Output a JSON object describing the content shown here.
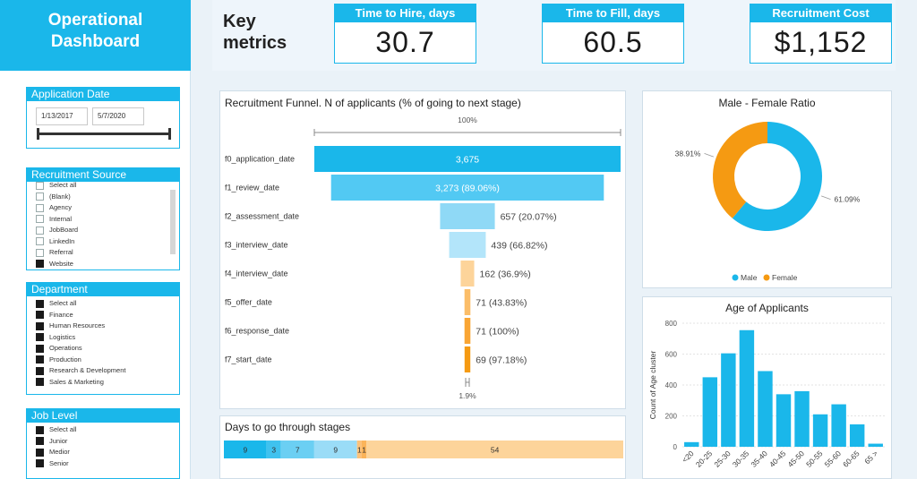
{
  "dashboard": {
    "title": "Operational\nDashboard"
  },
  "application_date": {
    "title": "Application Date",
    "start": "1/13/2017",
    "end": "5/7/2020"
  },
  "recruitment_source": {
    "title": "Recruitment Source",
    "items": [
      {
        "label": "Select all",
        "checked": false
      },
      {
        "label": "(Blank)",
        "checked": false
      },
      {
        "label": "Agency",
        "checked": false
      },
      {
        "label": "Internal",
        "checked": false
      },
      {
        "label": "JobBoard",
        "checked": false
      },
      {
        "label": "LinkedIn",
        "checked": false
      },
      {
        "label": "Referral",
        "checked": false
      },
      {
        "label": "Website",
        "checked": true
      }
    ]
  },
  "department": {
    "title": "Department",
    "items": [
      {
        "label": "Select all",
        "checked": true
      },
      {
        "label": "Finance",
        "checked": true
      },
      {
        "label": "Human Resources",
        "checked": true
      },
      {
        "label": "Logistics",
        "checked": true
      },
      {
        "label": "Operations",
        "checked": true
      },
      {
        "label": "Production",
        "checked": true
      },
      {
        "label": "Research & Development",
        "checked": true
      },
      {
        "label": "Sales & Marketing",
        "checked": true
      }
    ]
  },
  "job_level": {
    "title": "Job Level",
    "items": [
      {
        "label": "Select all",
        "checked": true
      },
      {
        "label": "Junior",
        "checked": true
      },
      {
        "label": "Medior",
        "checked": true
      },
      {
        "label": "Senior",
        "checked": true
      }
    ]
  },
  "key_metrics": {
    "label": "Key\nmetrics",
    "time_to_hire": {
      "title": "Time to Hire, days",
      "value": "30.7"
    },
    "time_to_fill": {
      "title": "Time to Fill, days",
      "value": "60.5"
    },
    "recruitment_cost": {
      "title": "Recruitment Cost",
      "value": "$1,152"
    }
  },
  "colors": {
    "accent": "#1ab7ea",
    "male": "#1ab7ea",
    "female": "#f59a12"
  },
  "chart_data": [
    {
      "type": "bar",
      "title": "Recruitment Funnel. N of applicants (% of going to next stage)",
      "top_label": "100%",
      "bottom_label": "1.9%",
      "categories": [
        "f0_application_date",
        "f1_review_date",
        "f2_assessment_date",
        "f3_interview_date",
        "f4_interview_date",
        "f5_offer_date",
        "f6_response_date",
        "f7_start_date"
      ],
      "values": [
        3675,
        3273,
        657,
        439,
        162,
        71,
        71,
        69
      ],
      "value_labels": [
        "3,675",
        "3,273 (89.06%)",
        "657 (20.07%)",
        "439 (66.82%)",
        "162 (36.9%)",
        "71 (43.83%)",
        "71 (100%)",
        "69 (97.18%)"
      ],
      "colors": [
        "#1ab7ea",
        "#52c9f3",
        "#8fd9f6",
        "#b3e5fa",
        "#fdd49a",
        "#fbbd68",
        "#f9a534",
        "#f59a12"
      ]
    },
    {
      "type": "pie",
      "title": "Male - Female Ratio",
      "categories": [
        "Male",
        "Female"
      ],
      "values": [
        61.09,
        38.91
      ],
      "value_labels": [
        "61.09%",
        "38.91%"
      ],
      "colors": [
        "#1ab7ea",
        "#f59a12"
      ],
      "legend": "bottom"
    },
    {
      "type": "bar",
      "title": "Age of Applicants",
      "ylabel": "Count of Age cluster",
      "categories": [
        "<20",
        "20-25",
        "25-30",
        "30-35",
        "35-40",
        "40-45",
        "45-50",
        "50-55",
        "55-60",
        "60-65",
        "65 >"
      ],
      "values": [
        30,
        450,
        605,
        755,
        490,
        340,
        360,
        210,
        275,
        145,
        20
      ],
      "ylim": [
        0,
        800
      ],
      "yticks": [
        0,
        200,
        400,
        600,
        800
      ],
      "grid": true,
      "color": "#1ab7ea"
    },
    {
      "type": "bar",
      "title": "Days to go through stages",
      "stacked": true,
      "values": [
        9,
        3,
        7,
        9,
        1,
        1,
        54
      ],
      "value_labels": [
        "9",
        "3",
        "7",
        "9",
        "1",
        "1",
        "54"
      ],
      "colors": [
        "#1ab7ea",
        "#3fc2ef",
        "#6bcff3",
        "#9adcf7",
        "#fcc27a",
        "#fbb45a",
        "#fdd49a"
      ]
    }
  ]
}
